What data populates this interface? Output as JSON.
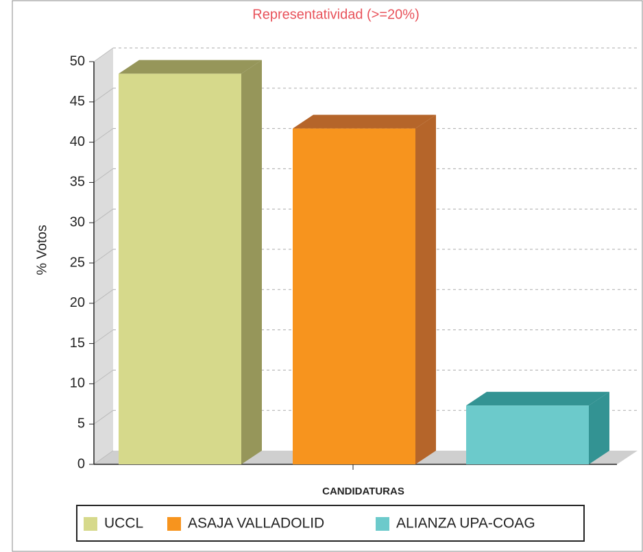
{
  "chart_data": {
    "type": "bar3d",
    "title": "Representatividad (>=20%)",
    "y_label": "% Votos",
    "x_label": "CANDIDATURAS",
    "categories": [
      "UCCL",
      "ASAJA VALLADOLID",
      "ALIANZA UPA-COAG"
    ],
    "values": [
      48.5,
      41.7,
      7.3
    ],
    "colors": [
      "#d6d98b",
      "#f7941e",
      "#6ccacb"
    ],
    "side_colors": [
      "#96965a",
      "#b5652a",
      "#339393"
    ],
    "ylim": [
      0,
      50
    ],
    "yticks": [
      0,
      5,
      10,
      15,
      20,
      25,
      30,
      35,
      40,
      45,
      50
    ],
    "grid": true,
    "legend": "bottom"
  }
}
